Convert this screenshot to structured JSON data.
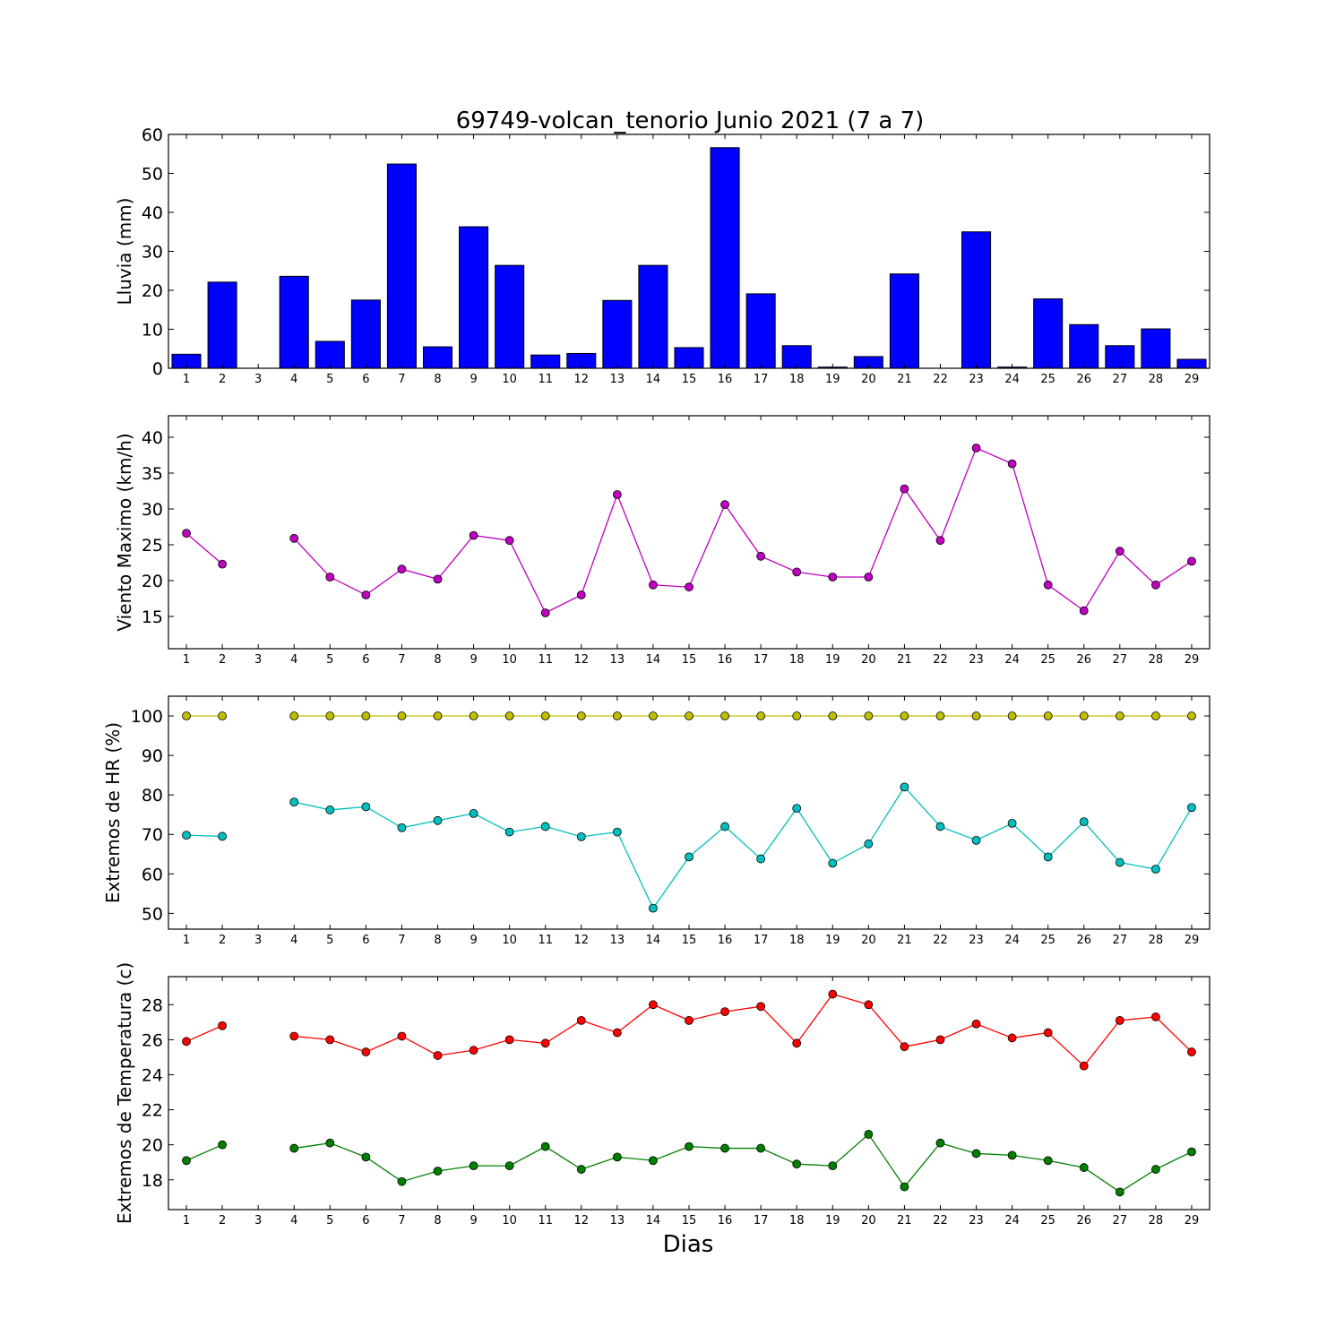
{
  "chart_data": {
    "title": "69749-volcan_tenorio Junio 2021  (7 a 7)",
    "xlabel": "Dias",
    "days": [
      1,
      2,
      3,
      4,
      5,
      6,
      7,
      8,
      9,
      10,
      11,
      12,
      13,
      14,
      15,
      16,
      17,
      18,
      19,
      20,
      21,
      22,
      23,
      24,
      25,
      26,
      27,
      28,
      29
    ],
    "panels": [
      {
        "type": "bar",
        "ylabel": "Lluvia (mm)",
        "ylim": [
          0,
          60
        ],
        "yticks": [
          0,
          10,
          20,
          30,
          40,
          50,
          60
        ],
        "series": [
          {
            "color": "#0000ff",
            "values": [
              3.6,
              22.1,
              0,
              23.6,
              6.9,
              17.5,
              52.4,
              5.5,
              36.3,
              26.4,
              3.4,
              3.8,
              17.4,
              26.4,
              5.3,
              56.6,
              19.1,
              5.8,
              0.3,
              3.0,
              24.2,
              0,
              35.0,
              0.3,
              17.8,
              11.2,
              5.8,
              10.1,
              2.3
            ]
          }
        ]
      },
      {
        "type": "line",
        "ylabel": "Viento Maximo (km/h)",
        "ylim": [
          10.5,
          43
        ],
        "yticks": [
          15,
          20,
          25,
          30,
          35,
          40
        ],
        "series": [
          {
            "color": "#bf00bf",
            "values": [
              26.6,
              22.3,
              null,
              25.9,
              20.5,
              18.0,
              21.6,
              20.2,
              26.3,
              25.6,
              15.5,
              18.0,
              32.0,
              19.4,
              19.1,
              30.6,
              23.4,
              21.2,
              20.5,
              20.5,
              32.8,
              25.6,
              38.5,
              36.3,
              19.4,
              15.8,
              24.1,
              19.4,
              22.7
            ]
          }
        ]
      },
      {
        "type": "line",
        "ylabel": "Extremos de HR (%)",
        "ylim": [
          46,
          105
        ],
        "yticks": [
          50,
          60,
          70,
          80,
          90,
          100
        ],
        "series": [
          {
            "color": "#bfbf00",
            "values": [
              100,
              100,
              null,
              100,
              100,
              100,
              100,
              100,
              100,
              100,
              100,
              100,
              100,
              100,
              100,
              100,
              100,
              100,
              100,
              100,
              100,
              100,
              100,
              100,
              100,
              100,
              100,
              100,
              100
            ]
          },
          {
            "color": "#00bfbf",
            "values": [
              69.8,
              69.5,
              null,
              78.2,
              76.2,
              77.0,
              71.7,
              73.5,
              75.3,
              70.6,
              72.0,
              69.4,
              70.6,
              51.3,
              64.3,
              72.0,
              63.8,
              76.6,
              62.7,
              67.6,
              82.0,
              72.0,
              68.5,
              72.8,
              64.3,
              73.2,
              62.9,
              61.2,
              76.8
            ]
          }
        ]
      },
      {
        "type": "line",
        "ylabel": "Extremos de Temperatura (c)",
        "ylim": [
          16.3,
          29.6
        ],
        "yticks": [
          18,
          20,
          22,
          24,
          26,
          28
        ],
        "series": [
          {
            "color": "#ff0000",
            "values": [
              25.9,
              26.8,
              null,
              26.2,
              26.0,
              25.3,
              26.2,
              25.1,
              25.4,
              26.0,
              25.8,
              27.1,
              26.4,
              28.0,
              27.1,
              27.6,
              27.9,
              25.8,
              28.6,
              28.0,
              25.6,
              26.0,
              26.9,
              26.1,
              26.4,
              24.5,
              27.1,
              27.3,
              25.3
            ]
          },
          {
            "color": "#008000",
            "values": [
              19.1,
              20.0,
              null,
              19.8,
              20.1,
              19.3,
              17.9,
              18.5,
              18.8,
              18.8,
              19.9,
              18.6,
              19.3,
              19.1,
              19.9,
              19.8,
              19.8,
              18.9,
              18.8,
              20.6,
              17.6,
              20.1,
              19.5,
              19.4,
              19.1,
              18.7,
              17.3,
              18.6,
              19.6
            ]
          }
        ]
      }
    ]
  }
}
